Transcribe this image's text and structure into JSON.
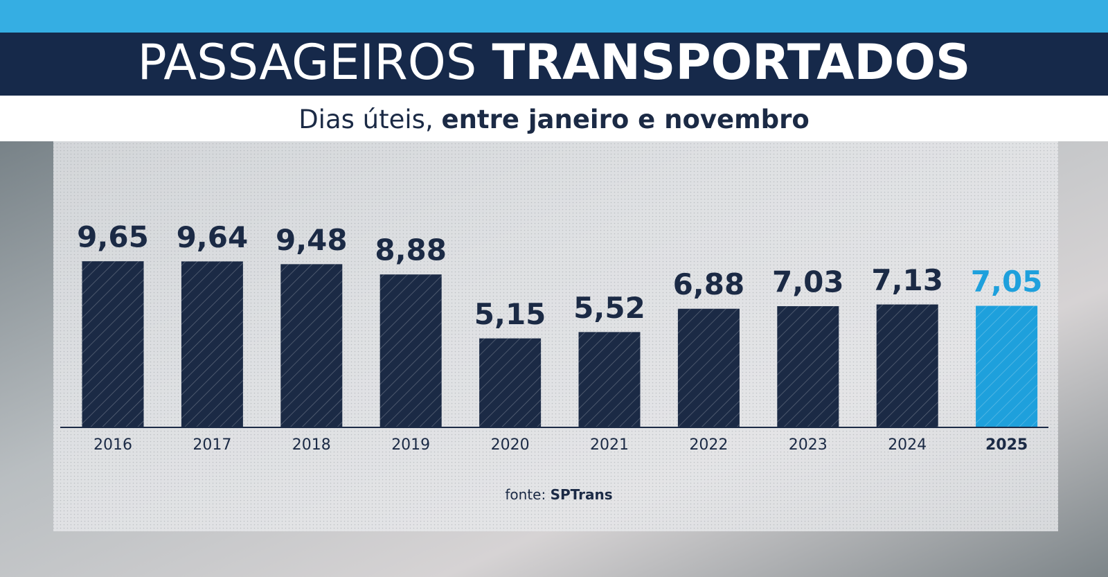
{
  "title": {
    "light": "PASSAGEIROS",
    "bold": "TRANSPORTADOS"
  },
  "subtitle": {
    "light": "Dias úteis,",
    "bold": "entre janeiro e novembro"
  },
  "chart_data": {
    "type": "bar",
    "categories": [
      "2016",
      "2017",
      "2018",
      "2019",
      "2020",
      "2021",
      "2022",
      "2023",
      "2024",
      "2025"
    ],
    "values": [
      9.65,
      9.64,
      9.48,
      8.88,
      5.15,
      5.52,
      6.88,
      7.03,
      7.13,
      7.05
    ],
    "value_labels": [
      "9,65",
      "9,64",
      "9,48",
      "8,88",
      "5,15",
      "5,52",
      "6,88",
      "7,03",
      "7,13",
      "7,05"
    ],
    "color": "#1b2a45",
    "colors": [
      "#1b2a45",
      "#1b2a45",
      "#1b2a45",
      "#1b2a45",
      "#1b2a45",
      "#1b2a45",
      "#1b2a45",
      "#1b2a45",
      "#1b2a45",
      "#1ea0dc"
    ]
  },
  "source": {
    "label": "fonte:",
    "name": "SPTrans"
  }
}
